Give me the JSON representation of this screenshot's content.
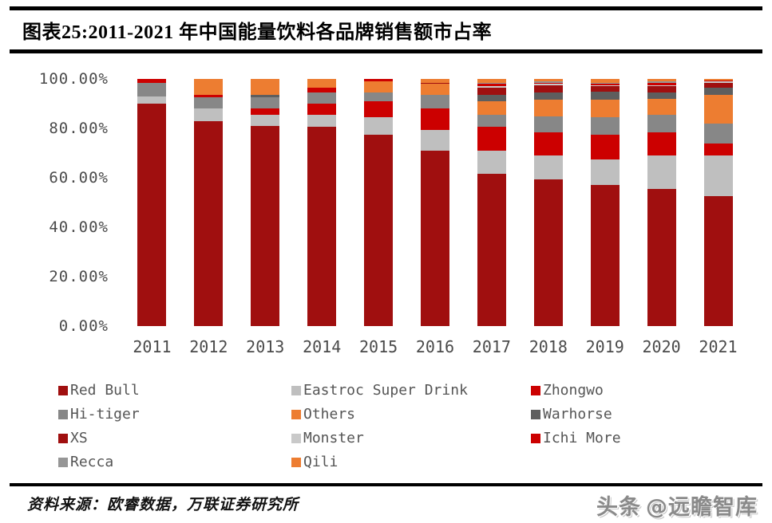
{
  "header": {
    "title": "图表25:2011-2021 年中国能量饮料各品牌销售额市占率"
  },
  "chart_data": {
    "type": "bar",
    "subtype": "stacked-percent",
    "unit": "%",
    "title": "2011-2021 年中国能量饮料各品牌销售额市占率",
    "xlabel": "",
    "ylabel": "",
    "ylim": [
      0,
      100
    ],
    "grid": false,
    "legend_position": "bottom",
    "y_ticks": [
      "100.00%",
      "80.00%",
      "60.00%",
      "40.00%",
      "20.00%",
      "0.00%"
    ],
    "categories": [
      "2011",
      "2012",
      "2013",
      "2014",
      "2015",
      "2016",
      "2017",
      "2018",
      "2019",
      "2020",
      "2021"
    ],
    "series": [
      {
        "name": "Red Bull",
        "color": "#A00F0F",
        "values": [
          90,
          83,
          81,
          80.5,
          77.5,
          71,
          61.5,
          59.5,
          57,
          55.5,
          52.5
        ]
      },
      {
        "name": "Eastroc Super Drink",
        "color": "#BFBFBF",
        "values": [
          3,
          5,
          4.5,
          5,
          7,
          8.5,
          9.5,
          9.5,
          10.5,
          13.5,
          16.5
        ]
      },
      {
        "name": "Zhongwo",
        "color": "#CC0000",
        "values": [
          0,
          0,
          2.5,
          4.5,
          6.5,
          8.5,
          9.5,
          9.5,
          10,
          9.5,
          5
        ]
      },
      {
        "name": "Hi-tiger",
        "color": "#878787",
        "values": [
          5.5,
          4.5,
          4.5,
          4.5,
          3.5,
          5.5,
          5,
          6.5,
          7,
          7,
          8
        ]
      },
      {
        "name": "Others",
        "color": "#ED7D31",
        "values": [
          0,
          0,
          0,
          0,
          4.5,
          4.5,
          5.5,
          6.5,
          7,
          6.5,
          11.5
        ]
      },
      {
        "name": "Warhorse",
        "color": "#5E5E5E",
        "values": [
          0,
          0,
          1,
          0,
          0,
          0,
          2.5,
          3,
          3.5,
          2.5,
          3
        ]
      },
      {
        "name": "XS",
        "color": "#A00F0F",
        "values": [
          0,
          0,
          0,
          0,
          0,
          0.5,
          3,
          3,
          2,
          2.5,
          2
        ]
      },
      {
        "name": "Monster",
        "color": "#C9C9C9",
        "values": [
          0,
          0,
          0,
          0,
          0,
          0,
          0.5,
          0.5,
          0.5,
          0.5,
          0.5
        ]
      },
      {
        "name": "Ichi More",
        "color": "#CC0000",
        "values": [
          1.5,
          1,
          0,
          2,
          1,
          0,
          1,
          0.5,
          0.5,
          1,
          0.5
        ]
      },
      {
        "name": "Recca",
        "color": "#969696",
        "values": [
          0,
          0,
          0,
          0,
          0,
          0,
          0.5,
          0.5,
          0.5,
          0.5,
          0
        ]
      },
      {
        "name": "Qili",
        "color": "#ED7D31",
        "values": [
          0,
          6.5,
          6.5,
          3.5,
          0,
          1.5,
          1.5,
          1,
          1.5,
          1,
          0.5
        ]
      }
    ]
  },
  "footer": {
    "source": "资料来源：欧睿数据，万联证券研究所",
    "watermark_brand": "头条",
    "watermark_handle": "@远瞻智库"
  }
}
